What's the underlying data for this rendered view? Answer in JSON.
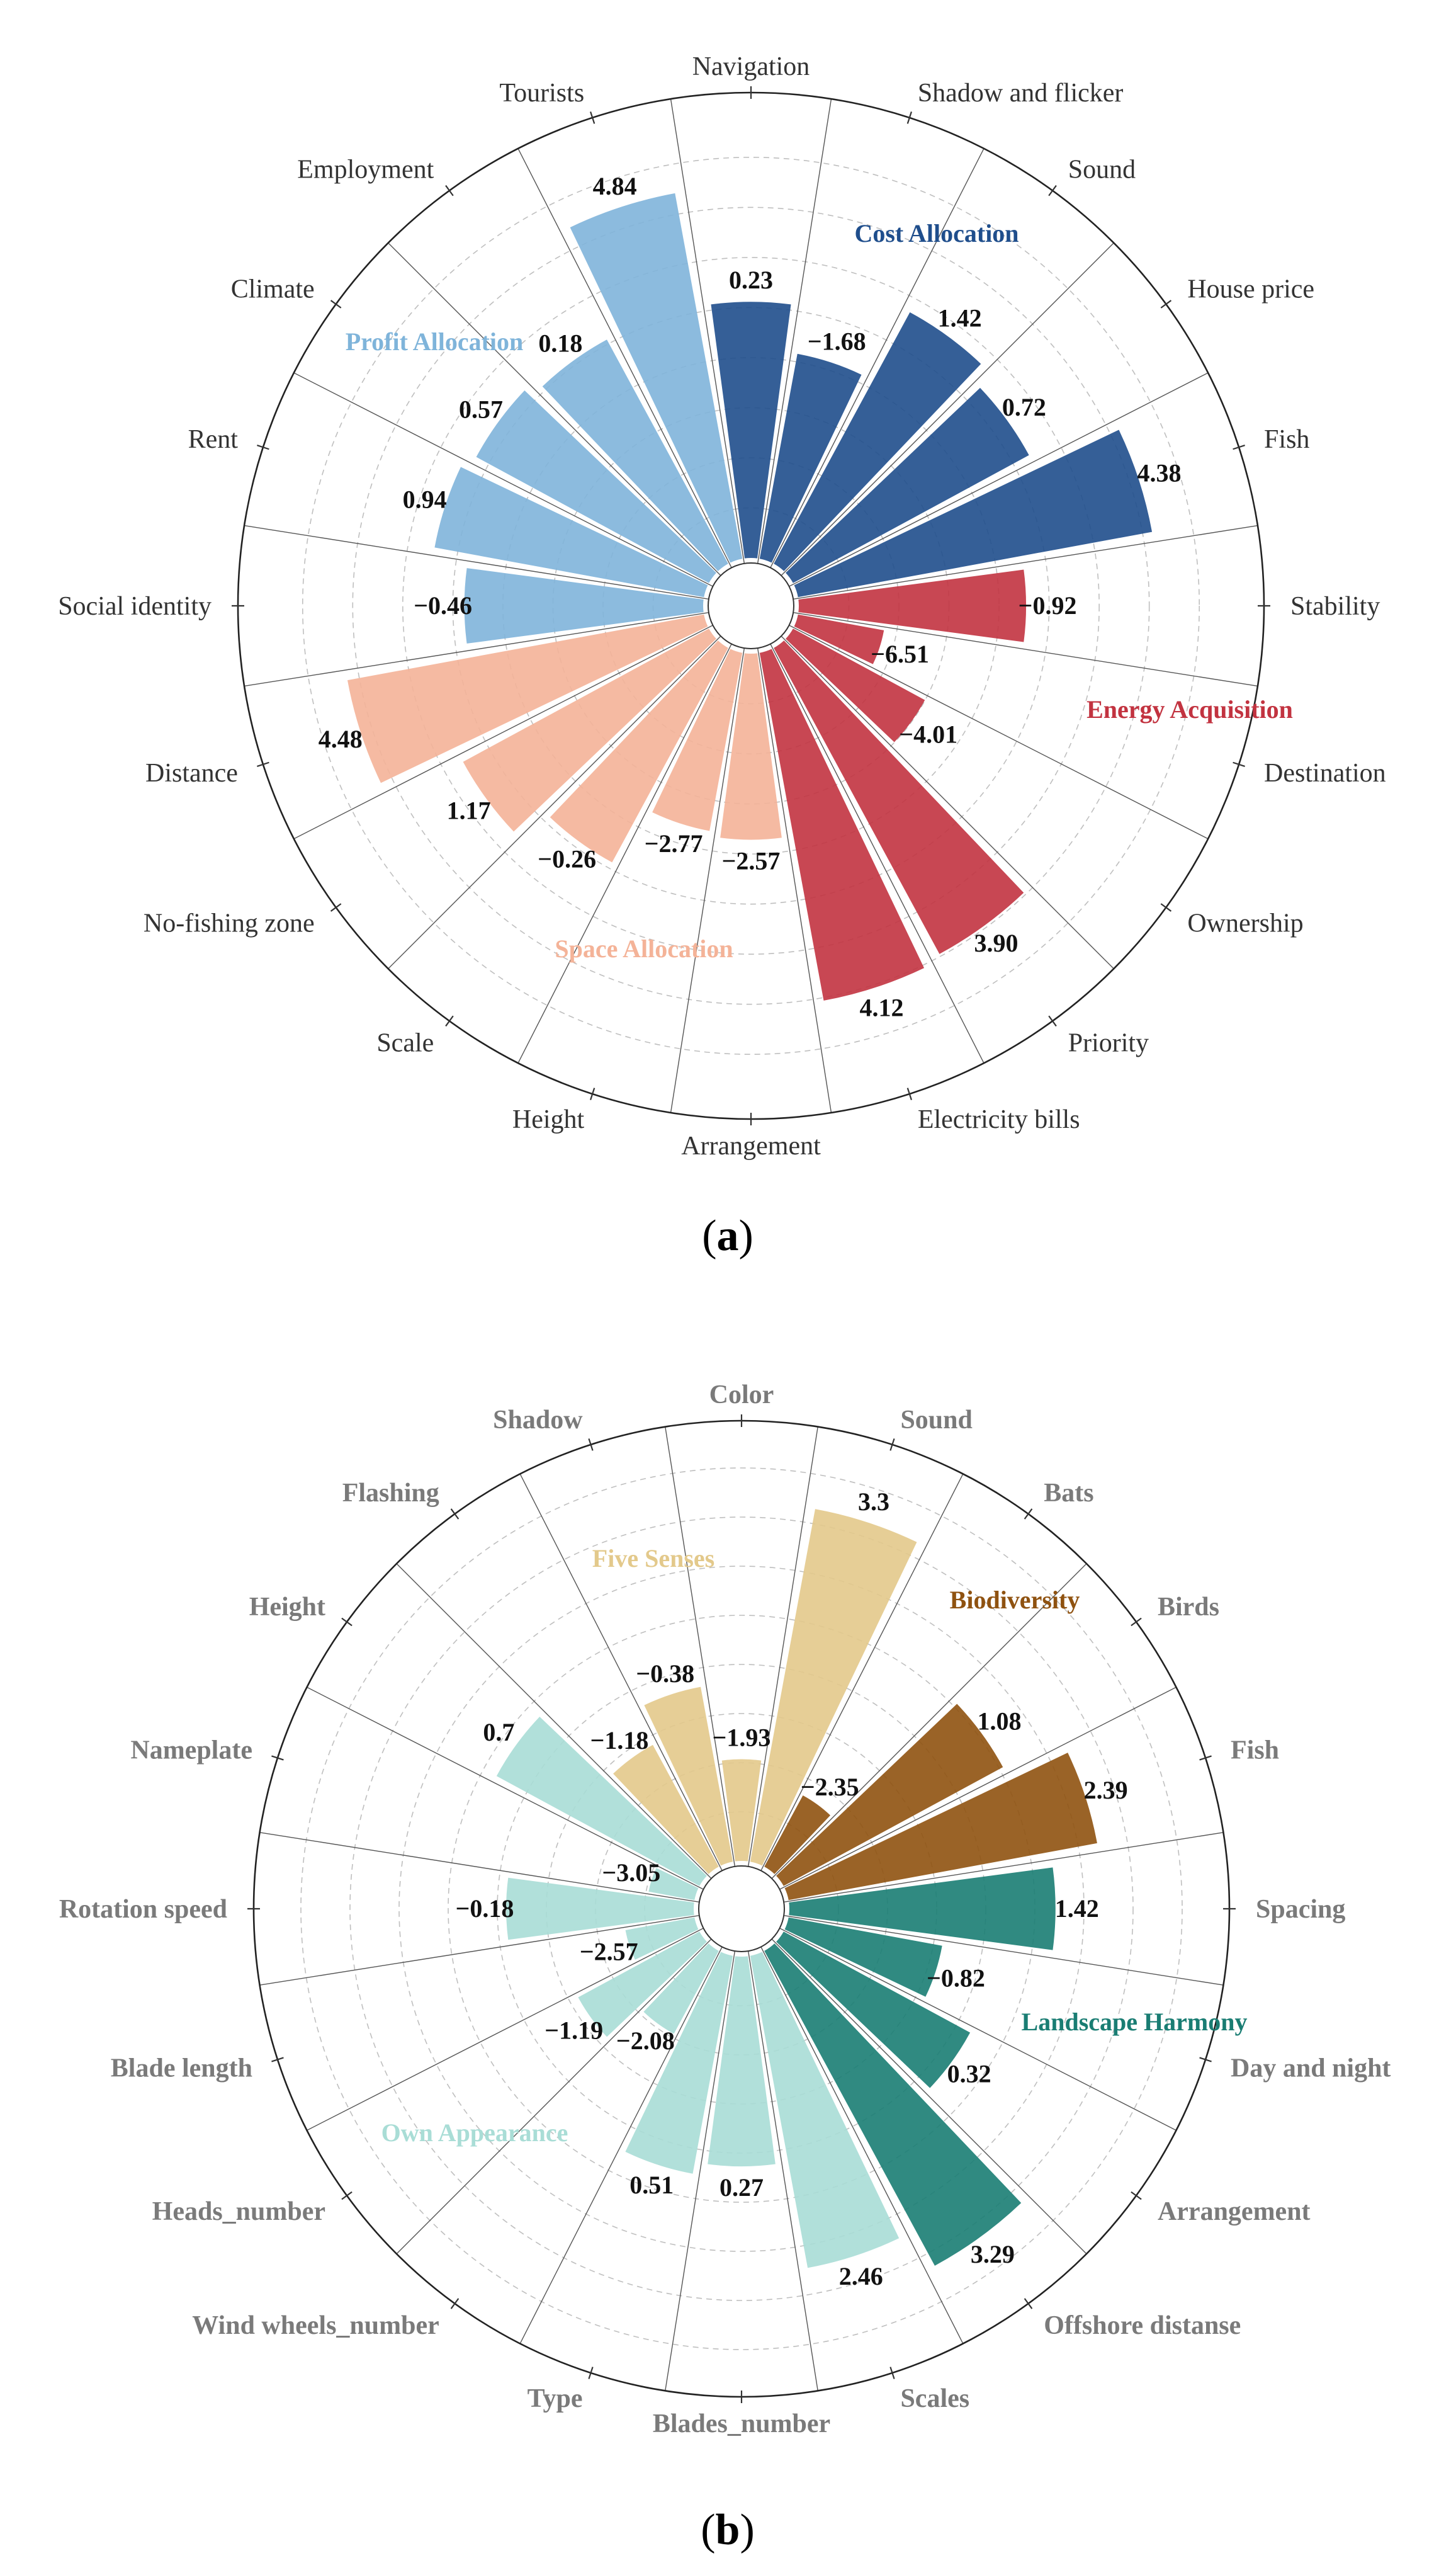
{
  "chart_data": [
    {
      "type": "radial-bar",
      "panel_label": "a",
      "axis": {
        "r_min": -10,
        "r_max": 7,
        "ring_step": 2
      },
      "groups": [
        {
          "name": "Cost Allocation",
          "color": "#1f4e8c"
        },
        {
          "name": "Energy Acquisition",
          "color": "#c23340"
        },
        {
          "name": "Space Allocation",
          "color": "#f4b398"
        },
        {
          "name": "Profit Allocation",
          "color": "#7fb4da"
        }
      ],
      "categories": [
        "Navigation",
        "Shadow and flicker",
        "Sound",
        "House price",
        "Fish",
        "Stability",
        "Destination",
        "Ownership",
        "Priority",
        "Electricity bills",
        "Arrangement",
        "Height",
        "Scale",
        "No-fishing zone",
        "Distance",
        "Social identity",
        "Rent",
        "Climate",
        "Employment",
        "Tourists"
      ],
      "bars": [
        {
          "category": "Navigation",
          "value": 0.23,
          "group": "Cost Allocation",
          "label": "0.23"
        },
        {
          "category": "Shadow and flicker",
          "value": -1.68,
          "group": "Cost Allocation",
          "label": "−1.68"
        },
        {
          "category": "Sound",
          "value": 1.42,
          "group": "Cost Allocation",
          "label": "1.42"
        },
        {
          "category": "House price",
          "value": 0.72,
          "group": "Cost Allocation",
          "label": "0.72"
        },
        {
          "category": "Fish",
          "value": 4.38,
          "group": "Cost Allocation",
          "label": "4.38"
        },
        {
          "category": "Stability",
          "value": -0.92,
          "group": "Energy Acquisition",
          "label": "−0.92"
        },
        {
          "category": "Destination",
          "value": -6.51,
          "group": "Energy Acquisition",
          "label": "−6.51"
        },
        {
          "category": "Ownership",
          "value": -4.01,
          "group": "Energy Acquisition",
          "label": "−4.01"
        },
        {
          "category": "Priority",
          "value": 3.9,
          "group": "Energy Acquisition",
          "label": "3.90"
        },
        {
          "category": "Electricity bills",
          "value": 4.12,
          "group": "Energy Acquisition",
          "label": "4.12"
        },
        {
          "category": "Arrangement",
          "value": -2.57,
          "group": "Space Allocation",
          "label": "−2.57"
        },
        {
          "category": "Height",
          "value": -2.77,
          "group": "Space Allocation",
          "label": "−2.77"
        },
        {
          "category": "Scale",
          "value": -0.26,
          "group": "Space Allocation",
          "label": "−0.26"
        },
        {
          "category": "No-fishing zone",
          "value": 1.17,
          "group": "Space Allocation",
          "label": "1.17"
        },
        {
          "category": "Distance",
          "value": 4.48,
          "group": "Space Allocation",
          "label": "4.48"
        },
        {
          "category": "Social identity",
          "value": -0.46,
          "group": "Profit Allocation",
          "label": "−0.46"
        },
        {
          "category": "Rent",
          "value": 0.94,
          "group": "Profit Allocation",
          "label": "0.94"
        },
        {
          "category": "Climate",
          "value": 0.57,
          "group": "Profit Allocation",
          "label": "0.57"
        },
        {
          "category": "Employment",
          "value": 0.18,
          "group": "Profit Allocation",
          "label": "0.18"
        },
        {
          "category": "Tourists",
          "value": 4.84,
          "group": "Profit Allocation",
          "label": "4.84"
        }
      ]
    },
    {
      "type": "radial-bar",
      "panel_label": "b",
      "axis": {
        "r_min": -4,
        "r_max": 4,
        "ring_step": 1
      },
      "groups": [
        {
          "name": "Five Senses",
          "color": "#e3c98b"
        },
        {
          "name": "Biodiversity",
          "color": "#8f5210"
        },
        {
          "name": "Landscape Harmony",
          "color": "#1a7d73"
        },
        {
          "name": "Own Appearance",
          "color": "#a9ddd6"
        }
      ],
      "categories": [
        "Color",
        "Sound",
        "Bats",
        "Birds",
        "Fish",
        "Spacing",
        "Day and night",
        "Arrangement",
        "Offshore distanse",
        "Scales",
        "Blades_number",
        "Type",
        "Wind wheels_number",
        "Heads_number",
        "Blade length",
        "Rotation speed",
        "Nameplate",
        "Height",
        "Flashing",
        "Shadow"
      ],
      "bars": [
        {
          "category": "Color",
          "value": -1.93,
          "group": "Five Senses",
          "label": "−1.93"
        },
        {
          "category": "Sound",
          "value": 3.3,
          "group": "Five Senses",
          "label": "3.3"
        },
        {
          "category": "Bats",
          "value": -2.35,
          "group": "Biodiversity",
          "label": "−2.35"
        },
        {
          "category": "Birds",
          "value": 1.08,
          "group": "Biodiversity",
          "label": "1.08"
        },
        {
          "category": "Fish",
          "value": 2.39,
          "group": "Biodiversity",
          "label": "2.39"
        },
        {
          "category": "Spacing",
          "value": 1.42,
          "group": "Landscape Harmony",
          "label": "1.42"
        },
        {
          "category": "Day and night",
          "value": -0.82,
          "group": "Landscape Harmony",
          "label": "−0.82"
        },
        {
          "category": "Arrangement",
          "value": 0.32,
          "group": "Landscape Harmony",
          "label": "0.32"
        },
        {
          "category": "Offshore distanse",
          "value": 3.29,
          "group": "Landscape Harmony",
          "label": "3.29"
        },
        {
          "category": "Scales",
          "value": 2.46,
          "group": "Own Appearance",
          "label": "2.46"
        },
        {
          "category": "Blades_number",
          "value": 0.27,
          "group": "Own Appearance",
          "label": "0.27"
        },
        {
          "category": "Type",
          "value": 0.51,
          "group": "Own Appearance",
          "label": "0.51"
        },
        {
          "category": "Wind wheels_number",
          "value": -2.08,
          "group": "Own Appearance",
          "label": "−2.08"
        },
        {
          "category": "Heads_number",
          "value": -1.19,
          "group": "Own Appearance",
          "label": "−1.19"
        },
        {
          "category": "Blade length",
          "value": -2.57,
          "group": "Own Appearance",
          "label": "−2.57"
        },
        {
          "category": "Rotation speed",
          "value": -0.18,
          "group": "Own Appearance",
          "label": "−0.18"
        },
        {
          "category": "Nameplate",
          "value": -3.05,
          "group": "Own Appearance",
          "label": "−3.05"
        },
        {
          "category": "Height",
          "value": 0.7,
          "group": "Own Appearance",
          "label": "0.7"
        },
        {
          "category": "Flashing",
          "value": -1.18,
          "group": "Five Senses",
          "label": "−1.18"
        },
        {
          "category": "Shadow",
          "value": -0.38,
          "group": "Five Senses",
          "label": "−0.38"
        }
      ]
    }
  ],
  "captions": [
    "a",
    "b"
  ]
}
